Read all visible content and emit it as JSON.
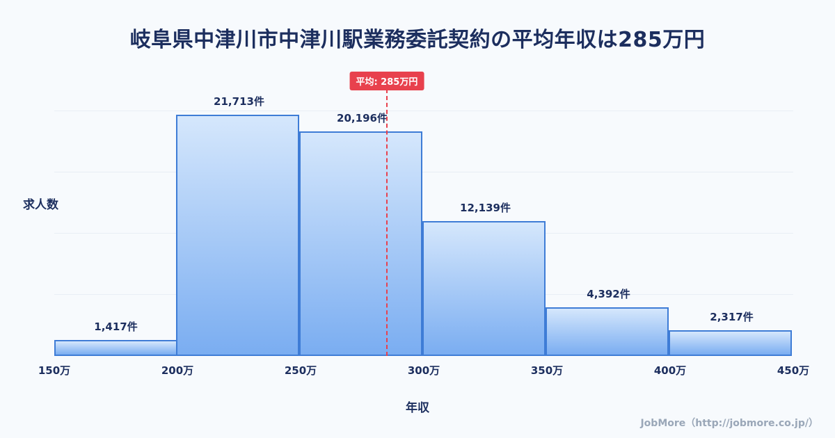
{
  "page": {
    "footer": "JobMore（http://jobmore.co.jp/）"
  },
  "chart_data": {
    "type": "bar",
    "title": "岐阜県中津川市中津川駅業務委託契約の平均年収は285万円",
    "xlabel": "年収",
    "ylabel": "求人数",
    "x_ticks": [
      "150万",
      "200万",
      "250万",
      "300万",
      "350万",
      "400万",
      "450万"
    ],
    "bin_edges": [
      150,
      200,
      250,
      300,
      350,
      400,
      450
    ],
    "values": [
      1417,
      21713,
      20196,
      12139,
      4392,
      2317
    ],
    "bar_labels": [
      "1,417件",
      "21,713件",
      "20,196件",
      "12,139件",
      "4,392件",
      "2,317件"
    ],
    "mean": {
      "value": 285,
      "label": "平均: 285万円"
    },
    "xlim": [
      150,
      450
    ],
    "ylim": [
      0,
      22000
    ],
    "grid": "horizontal-faint",
    "legend": "none",
    "colors": {
      "bar_top": "#d5e7fc",
      "bar_bottom": "#7aadf1",
      "bar_border": "#3e7cd6",
      "mean_line": "#e8414d",
      "title_text": "#1c2e5e",
      "footer_text": "#9aa7b8",
      "background": "#f7fafd"
    }
  }
}
